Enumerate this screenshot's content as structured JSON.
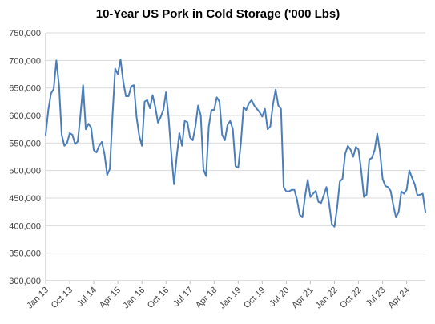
{
  "chart_data": {
    "type": "line",
    "title": "10-Year US Pork in Cold Storage ('000 Lbs)",
    "xlabel": "",
    "ylabel": "",
    "ylim": [
      300000,
      750000
    ],
    "y_ticks": [
      "300,000",
      "350,000",
      "400,000",
      "450,000",
      "500,000",
      "550,000",
      "600,000",
      "650,000",
      "700,000",
      "750,000"
    ],
    "x_ticks": [
      {
        "label": "Jan 13",
        "index": 0
      },
      {
        "label": "Oct 13",
        "index": 9
      },
      {
        "label": "Jul 14",
        "index": 18
      },
      {
        "label": "Apr 15",
        "index": 27
      },
      {
        "label": "Jan 16",
        "index": 36
      },
      {
        "label": "Oct 16",
        "index": 45
      },
      {
        "label": "Jul 17",
        "index": 54
      },
      {
        "label": "Apr 18",
        "index": 63
      },
      {
        "label": "Jan 19",
        "index": 72
      },
      {
        "label": "Oct 19",
        "index": 81
      },
      {
        "label": "Jul 20",
        "index": 90
      },
      {
        "label": "Apr 21",
        "index": 99
      },
      {
        "label": "Jan 22",
        "index": 108
      },
      {
        "label": "Oct 22",
        "index": 117
      },
      {
        "label": "Jul 23",
        "index": 126
      },
      {
        "label": "Apr 24",
        "index": 135
      }
    ],
    "grid": true,
    "legend": "none",
    "series_color": "#4a7ebb",
    "series": [
      {
        "values": [
          565000,
          610000,
          640000,
          648000,
          700000,
          655000,
          565000,
          545000,
          550000,
          568000,
          565000,
          548000,
          553000,
          600000,
          655000,
          575000,
          585000,
          578000,
          537000,
          533000,
          545000,
          552000,
          530000,
          492000,
          503000,
          600000,
          685000,
          675000,
          702000,
          662000,
          635000,
          635000,
          653000,
          655000,
          597000,
          563000,
          545000,
          625000,
          628000,
          613000,
          637000,
          615000,
          587000,
          597000,
          610000,
          642000,
          595000,
          530000,
          475000,
          525000,
          568000,
          545000,
          590000,
          588000,
          560000,
          555000,
          580000,
          618000,
          600000,
          502000,
          490000,
          580000,
          610000,
          610000,
          633000,
          625000,
          565000,
          555000,
          583000,
          590000,
          575000,
          508000,
          505000,
          550000,
          615000,
          610000,
          622000,
          628000,
          618000,
          612000,
          606000,
          598000,
          612000,
          575000,
          580000,
          620000,
          647000,
          618000,
          612000,
          470000,
          462000,
          462000,
          465000,
          465000,
          447000,
          420000,
          415000,
          453000,
          483000,
          452000,
          458000,
          463000,
          443000,
          441000,
          455000,
          470000,
          440000,
          403000,
          398000,
          433000,
          480000,
          485000,
          530000,
          545000,
          538000,
          525000,
          543000,
          538000,
          500000,
          452000,
          456000,
          520000,
          523000,
          537000,
          567000,
          535000,
          485000,
          472000,
          470000,
          463000,
          437000,
          415000,
          425000,
          462000,
          458000,
          465000,
          500000,
          487000,
          475000,
          455000,
          456000,
          458000,
          425000
        ]
      }
    ]
  }
}
